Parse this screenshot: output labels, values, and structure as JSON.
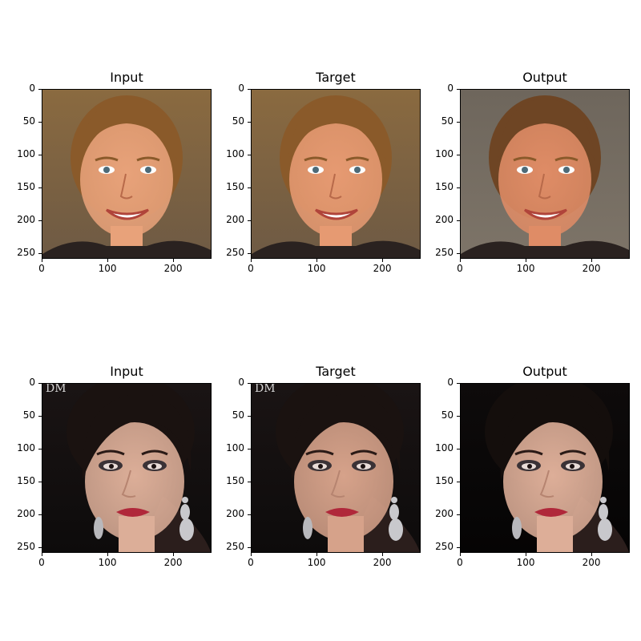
{
  "rows": [
    {
      "panels": [
        {
          "title": "Input",
          "subject": "blonde-woman",
          "bg": "#6e5a44",
          "bg2": "#8a6a40",
          "face": "#e8a27a",
          "hair": "#8a5a2a"
        },
        {
          "title": "Target",
          "subject": "blonde-woman",
          "bg": "#6e5a44",
          "bg2": "#8a6a40",
          "face": "#e69a72",
          "hair": "#8a5a2a"
        },
        {
          "title": "Output",
          "subject": "blonde-woman",
          "bg": "#7d7468",
          "bg2": "#6e665c",
          "face": "#df8c66",
          "hair": "#6e4524"
        }
      ]
    },
    {
      "panels": [
        {
          "title": "Input",
          "subject": "dark-haired-woman",
          "bg": "#0d0b0b",
          "bg2": "#1a1414",
          "face": "#dcae98",
          "hair": "#1a1210",
          "watermark": "DM"
        },
        {
          "title": "Target",
          "subject": "dark-haired-woman",
          "bg": "#0d0b0b",
          "bg2": "#1a1414",
          "face": "#d6a28a",
          "hair": "#1a1210",
          "watermark": "DM"
        },
        {
          "title": "Output",
          "subject": "dark-haired-woman",
          "bg": "#050404",
          "bg2": "#0e0b0b",
          "face": "#ddae98",
          "hair": "#140e0c"
        }
      ]
    }
  ],
  "axis": {
    "y_ticks": [
      "0",
      "50",
      "100",
      "150",
      "200",
      "250"
    ],
    "x_ticks": [
      "0",
      "100",
      "200"
    ],
    "y_values": [
      0,
      50,
      100,
      150,
      200,
      250
    ],
    "x_values": [
      0,
      100,
      200
    ],
    "extent": 256
  }
}
